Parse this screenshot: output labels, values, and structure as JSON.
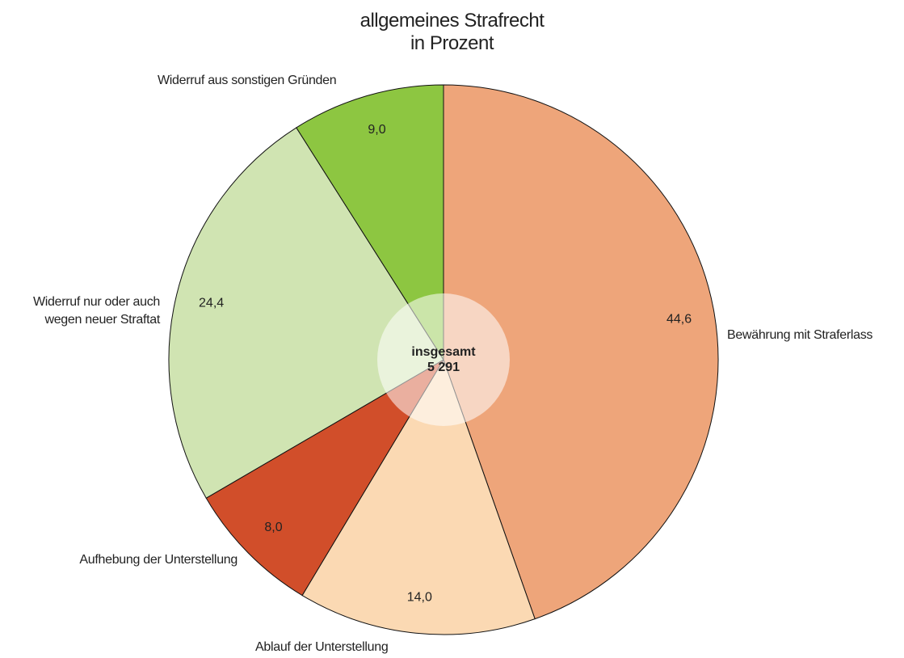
{
  "chart_data": {
    "type": "pie",
    "title": "allgemeines Strafrecht",
    "subtitle": "in Prozent",
    "center_label": "insgesamt",
    "center_value": "5 291",
    "categories": [
      "Bewährung mit Straferlass",
      "Ablauf der Unterstellung",
      "Aufhebung der Unterstellung",
      "Widerruf nur oder auch\nwegen neuer Straftat",
      "Widerruf aus sonstigen Gründen"
    ],
    "values": [
      44.6,
      14.0,
      8.0,
      24.4,
      9.0
    ],
    "value_labels": [
      "44,6",
      "14,0",
      "8,0",
      "24,4",
      "9,0"
    ],
    "colors": [
      "#eea57a",
      "#fbd9b3",
      "#d14e2a",
      "#d0e4b2",
      "#8dc641"
    ]
  }
}
